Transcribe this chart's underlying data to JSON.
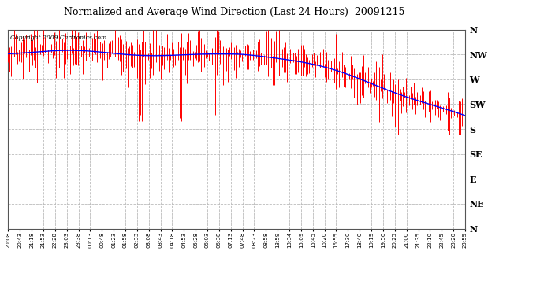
{
  "title": "Normalized and Average Wind Direction (Last 24 Hours)  20091215",
  "copyright": "Copyright 2009 Cartronics.com",
  "y_labels": [
    "N",
    "NW",
    "W",
    "SW",
    "S",
    "SE",
    "E",
    "NE",
    "N"
  ],
  "y_values": [
    360,
    315,
    270,
    225,
    180,
    135,
    90,
    45,
    0
  ],
  "x_labels": [
    "20:08",
    "20:43",
    "21:18",
    "21:53",
    "22:28",
    "23:03",
    "23:38",
    "00:13",
    "00:48",
    "01:23",
    "01:58",
    "02:33",
    "03:08",
    "03:43",
    "04:18",
    "04:53",
    "05:28",
    "06:03",
    "06:38",
    "07:13",
    "07:48",
    "08:23",
    "08:58",
    "13:59",
    "13:34",
    "15:09",
    "15:45",
    "16:20",
    "16:55",
    "17:30",
    "18:40",
    "19:15",
    "19:50",
    "20:25",
    "21:00",
    "21:35",
    "22:10",
    "22:45",
    "23:20",
    "23:55"
  ],
  "background_color": "#ffffff",
  "plot_bg_color": "#ffffff",
  "grid_color": "#bbbbbb",
  "bar_color": "#ff0000",
  "line_color": "#0000ff",
  "title_color": "#000000",
  "copyright_color": "#000000",
  "ylim_min": 0,
  "ylim_max": 360,
  "n_points": 288
}
